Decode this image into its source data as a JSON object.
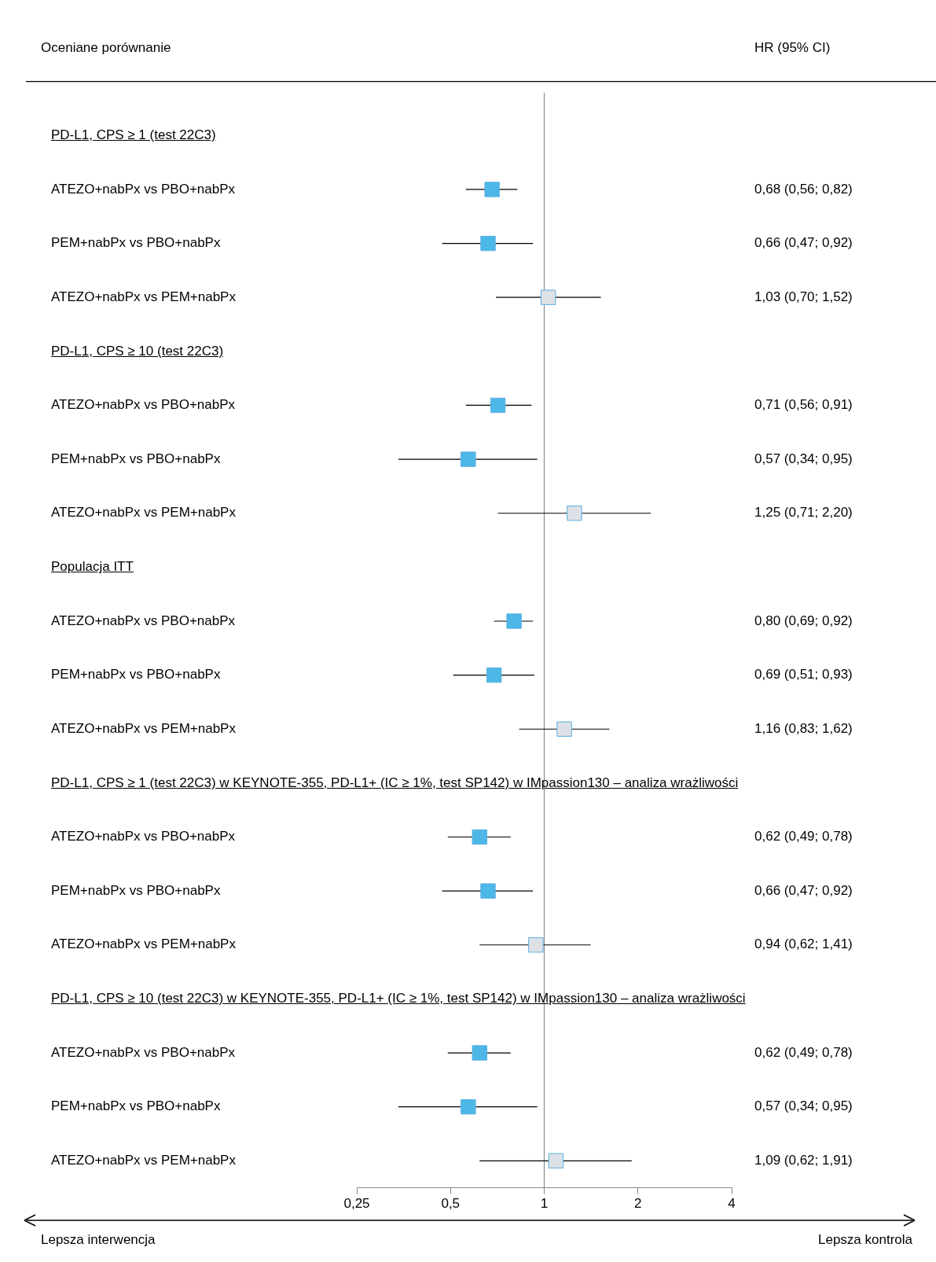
{
  "chart_data": {
    "type": "scatter",
    "orientation": "horizontal",
    "ylabel": "Oceniane porównanie",
    "categories": [
      "PD-L1, CPS ≥ 1 (test 22C3)",
      "ATEZO+nabPx vs PBO+nabPx",
      "PEM+nabPx vs PBO+nabPx",
      "ATEZO+nabPx vs PEM+nabPx",
      "PD-L1, CPS ≥ 10 (test 22C3)",
      "ATEZO+nabPx vs PBO+nabPx",
      "PEM+nabPx vs PBO+nabPx",
      "ATEZO+nabPx vs PEM+nabPx",
      "Populacja ITT",
      "ATEZO+nabPx vs PBO+nabPx",
      "PEM+nabPx vs PBO+nabPx",
      "ATEZO+nabPx vs PEM+nabPx",
      "PD-L1, CPS ≥ 1 (test 22C3) w KEYNOTE-355, PD-L1+ (IC ≥ 1%, test SP142) w IMpassion130 – analiza wrażliwości",
      "ATEZO+nabPx vs PBO+nabPx",
      "PEM+nabPx vs PBO+nabPx",
      "ATEZO+nabPx vs PEM+nabPx",
      "PD-L1, CPS ≥ 10 (test 22C3) w KEYNOTE-355, PD-L1+ (IC ≥ 1%, test SP142) w IMpassion130 – analiza wrażliwości",
      "ATEZO+nabPx vs PBO+nabPx",
      "PEM+nabPx vs PBO+nabPx",
      "ATEZO+nabPx vs PEM+nabPx"
    ],
    "values": [
      null,
      0.68,
      0.66,
      1.03,
      null,
      0.71,
      0.57,
      1.25,
      null,
      0.8,
      0.69,
      1.16,
      null,
      0.62,
      0.66,
      0.94,
      null,
      0.62,
      0.57,
      1.09
    ],
    "errors": [
      null,
      [
        0.56,
        0.82
      ],
      [
        0.47,
        0.92
      ],
      [
        0.7,
        1.52
      ],
      null,
      [
        0.56,
        0.91
      ],
      [
        0.34,
        0.95
      ],
      [
        0.71,
        2.2
      ],
      null,
      [
        0.69,
        0.92
      ],
      [
        0.51,
        0.93
      ],
      [
        0.83,
        1.62
      ],
      null,
      [
        0.49,
        0.78
      ],
      [
        0.47,
        0.92
      ],
      [
        0.62,
        1.41
      ],
      null,
      [
        0.49,
        0.78
      ],
      [
        0.34,
        0.95
      ],
      [
        0.62,
        1.91
      ]
    ],
    "colors": [
      null,
      "#4db8e8",
      "#4db8e8",
      "#dde1e6",
      null,
      "#4db8e8",
      "#4db8e8",
      "#dde1e6",
      null,
      "#4db8e8",
      "#4db8e8",
      "#dde1e6",
      null,
      "#4db8e8",
      "#4db8e8",
      "#dde1e6",
      null,
      "#4db8e8",
      "#4db8e8",
      "#dde1e6"
    ],
    "value_labels": [
      null,
      "0,68 (0,56; 0,82)",
      "0,66 (0,47; 0,92)",
      "1,03 (0,70; 1,52)",
      null,
      "0,71 (0,56; 0,91)",
      "0,57 (0,34; 0,95)",
      "1,25 (0,71; 2,20)",
      null,
      "0,80 (0,69; 0,92)",
      "0,69 (0,51; 0,93)",
      "1,16 (0,83; 1,62)",
      null,
      "0,62 (0,49; 0,78)",
      "0,66 (0,47; 0,92)",
      "0,94 (0,62; 1,41)",
      null,
      "0,62 (0,49; 0,78)",
      "0,57 (0,34; 0,95)",
      "1,09 (0,62; 1,91)"
    ],
    "log": "x",
    "xlim": [
      0.25,
      4
    ],
    "xticks": [
      {
        "value": 0.25,
        "label": "0,25"
      },
      {
        "value": 0.5,
        "label": "0,5"
      },
      1,
      2,
      4
    ],
    "marker": "square",
    "ref_lines": [
      {
        "axis": "x",
        "value": 1,
        "color": "#8c8c8c"
      }
    ],
    "annotations": [
      "HR (95% CI)",
      "Lepsza interwencja",
      "Lepsza kontrola"
    ]
  }
}
